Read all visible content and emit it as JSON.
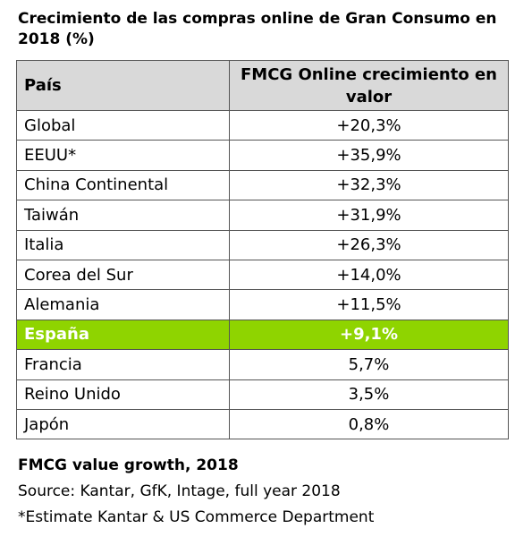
{
  "title": "Crecimiento de las compras online de Gran Consumo en 2018 (%)",
  "chart_data": {
    "type": "table",
    "columns": [
      "País",
      "FMCG Online crecimiento en valor"
    ],
    "rows": [
      {
        "country": "Global",
        "value": "+20,3%"
      },
      {
        "country": "EEUU*",
        "value": "+35,9%"
      },
      {
        "country": "China Continental",
        "value": "+32,3%"
      },
      {
        "country": "Taiwán",
        "value": "+31,9%"
      },
      {
        "country": "Italia",
        "value": "+26,3%"
      },
      {
        "country": "Corea del Sur",
        "value": "+14,0%"
      },
      {
        "country": "Alemania",
        "value": "+11,5%"
      },
      {
        "country": "España",
        "value": "+9,1%",
        "highlight": true
      },
      {
        "country": "Francia",
        "value": "5,7%"
      },
      {
        "country": "Reino Unido",
        "value": "3,5%"
      },
      {
        "country": "Japón",
        "value": "0,8%"
      }
    ],
    "highlight_color": "#8fd400",
    "header_color": "#d9d9d9"
  },
  "footer": {
    "line1": "FMCG value growth, 2018",
    "line2": "Source: Kantar, GfK, Intage, full year 2018",
    "line3": "*Estimate Kantar & US Commerce Department"
  }
}
